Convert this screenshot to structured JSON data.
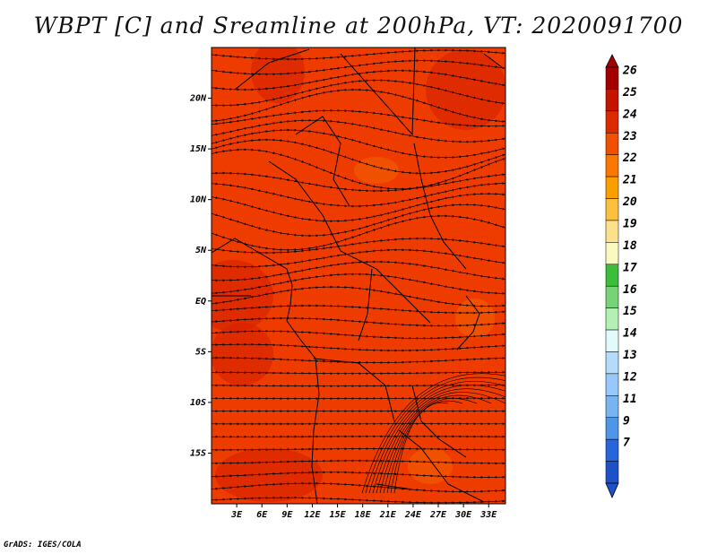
{
  "title": "WBPT [C] and Sreamline at 200hPa, VT: 2020091700",
  "credit": "GrADS: IGES/COLA",
  "map": {
    "field": "wet-bulb potential temperature",
    "overlay": "streamlines",
    "extent": {
      "lon": [
        0,
        35
      ],
      "lat": [
        -20,
        25
      ]
    },
    "lat_ticks": [
      {
        "value": 20,
        "label": "20N"
      },
      {
        "value": 15,
        "label": "15N"
      },
      {
        "value": 10,
        "label": "10N"
      },
      {
        "value": 5,
        "label": "5N"
      },
      {
        "value": 0,
        "label": "EQ"
      },
      {
        "value": -5,
        "label": "5S"
      },
      {
        "value": -10,
        "label": "10S"
      },
      {
        "value": -15,
        "label": "15S"
      }
    ],
    "lon_ticks": [
      {
        "value": 3,
        "label": "3E"
      },
      {
        "value": 6,
        "label": "6E"
      },
      {
        "value": 9,
        "label": "9E"
      },
      {
        "value": 12,
        "label": "12E"
      },
      {
        "value": 15,
        "label": "15E"
      },
      {
        "value": 18,
        "label": "18E"
      },
      {
        "value": 21,
        "label": "21E"
      },
      {
        "value": 24,
        "label": "24E"
      },
      {
        "value": 27,
        "label": "27E"
      },
      {
        "value": 30,
        "label": "30E"
      },
      {
        "value": 33,
        "label": "33E"
      }
    ],
    "background_color": "#ee3c00",
    "warm_color": "#d82400",
    "cool_color": "#f05a00"
  },
  "colorbar": {
    "labels": [
      "26",
      "25",
      "24",
      "23",
      "22",
      "21",
      "20",
      "19",
      "18",
      "17",
      "16",
      "15",
      "14",
      "13",
      "12",
      "11",
      "9",
      "7"
    ],
    "colors": [
      "#a50000",
      "#c41400",
      "#dc2a00",
      "#f05000",
      "#fa7800",
      "#fa9f00",
      "#fcc040",
      "#fce08c",
      "#fafac0",
      "#3cbe3c",
      "#78d278",
      "#b4f0b4",
      "#e1fafa",
      "#b4dcfa",
      "#96c8fa",
      "#78b4f0",
      "#5096e6",
      "#2864dc",
      "#1e50c8"
    ]
  }
}
